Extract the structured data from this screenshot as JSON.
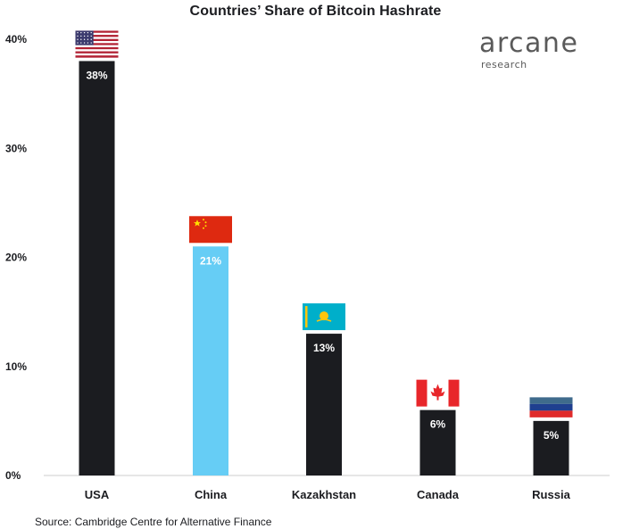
{
  "chart_data": {
    "type": "bar",
    "title": "Countries’ Share of Bitcoin Hashrate",
    "categories": [
      "USA",
      "China",
      "Kazakhstan",
      "Canada",
      "Russia"
    ],
    "values": [
      38,
      21,
      13,
      6,
      5
    ],
    "data_labels": [
      "38%",
      "21%",
      "13%",
      "6%",
      "5%"
    ],
    "bar_colors": [
      "#1b1c20",
      "#66cdf5",
      "#1b1c20",
      "#1b1c20",
      "#1b1c20"
    ],
    "flag_icons": [
      "usa-flag-icon",
      "china-flag-icon",
      "kazakhstan-flag-icon",
      "canada-flag-icon",
      "russia-flag-icon"
    ],
    "ylim": [
      0,
      40
    ],
    "yticks": [
      0,
      10,
      20,
      30,
      40
    ],
    "ytick_labels": [
      "0%",
      "10%",
      "20%",
      "30%",
      "40%"
    ],
    "xlabel": "",
    "ylabel": "",
    "grid": false,
    "legend": "none"
  },
  "logo": {
    "main": "arcane",
    "sub": "research"
  },
  "source": "Source: Cambridge Centre for Alternative Finance",
  "colors": {
    "dark_bar": "#1b1c20",
    "highlight_bar": "#66cdf5",
    "axis": "#cccccc"
  }
}
